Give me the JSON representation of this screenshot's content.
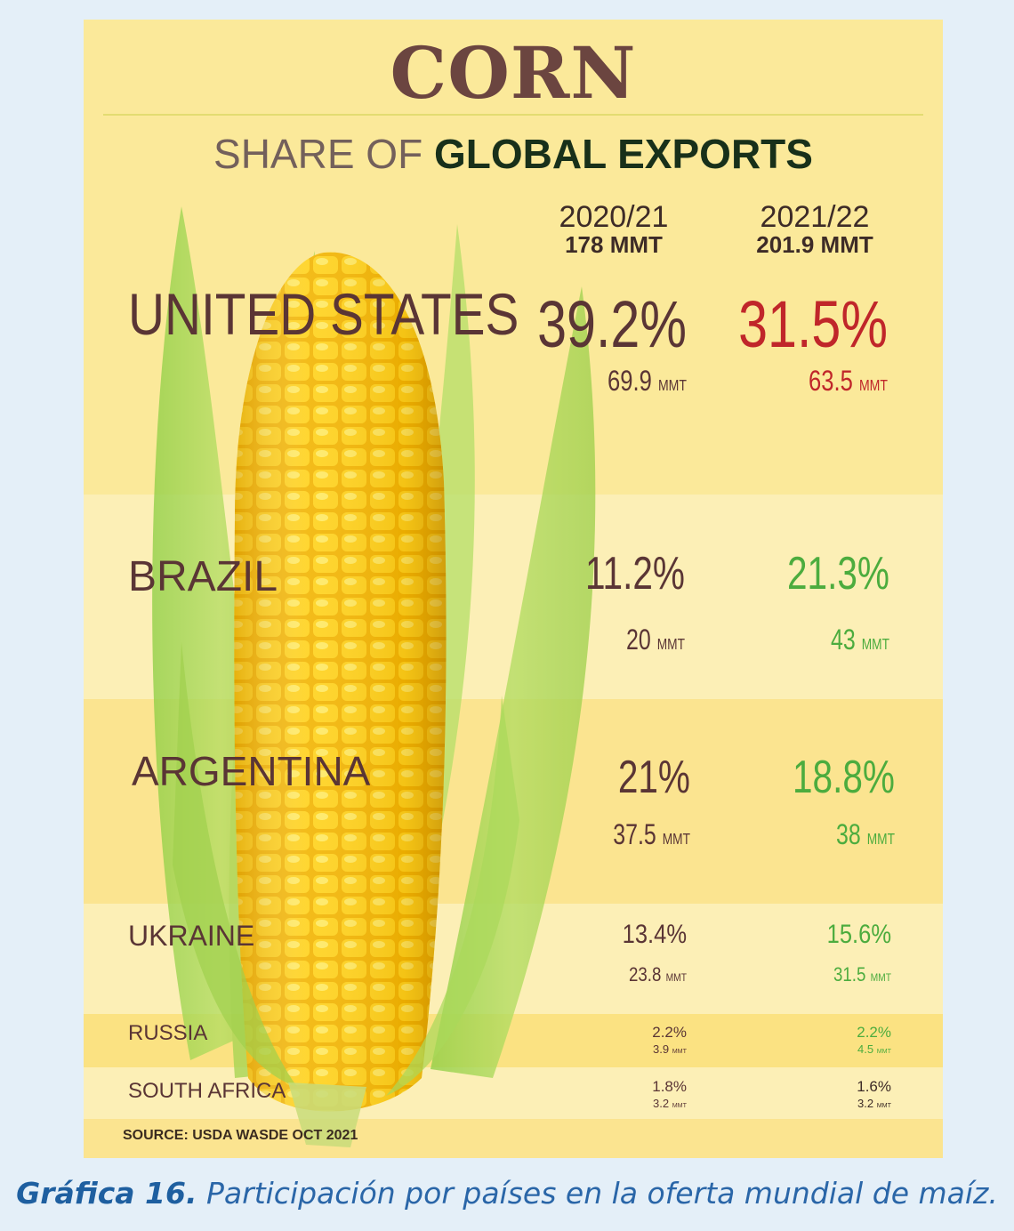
{
  "chart_data": {
    "type": "table",
    "title": "CORN",
    "subtitle_light": "SHARE OF",
    "subtitle_bold": "GLOBAL EXPORTS",
    "columns": [
      {
        "year": "2020/21",
        "total": "178 MMT"
      },
      {
        "year": "2021/22",
        "total": "201.9 MMT"
      }
    ],
    "unit": "MMT",
    "rows": [
      {
        "country": "UNITED STATES",
        "values": [
          {
            "pct": "39.2%",
            "mmt": "69.9",
            "color": "#5a3535"
          },
          {
            "pct": "31.5%",
            "mmt": "63.5",
            "color": "#c0262a"
          }
        ]
      },
      {
        "country": "BRAZIL",
        "values": [
          {
            "pct": "11.2%",
            "mmt": "20",
            "color": "#5a3535"
          },
          {
            "pct": "21.3%",
            "mmt": "43",
            "color": "#4cac3e"
          }
        ]
      },
      {
        "country": "ARGENTINA",
        "values": [
          {
            "pct": "21%",
            "mmt": "37.5",
            "color": "#5a3535"
          },
          {
            "pct": "18.8%",
            "mmt": "38",
            "color": "#4cac3e"
          }
        ]
      },
      {
        "country": "UKRAINE",
        "values": [
          {
            "pct": "13.4%",
            "mmt": "23.8",
            "color": "#5a3535"
          },
          {
            "pct": "15.6%",
            "mmt": "31.5",
            "color": "#4cac3e"
          }
        ]
      },
      {
        "country": "RUSSIA",
        "values": [
          {
            "pct": "2.2%",
            "mmt": "3.9",
            "color": "#5a3535"
          },
          {
            "pct": "2.2%",
            "mmt": "4.5",
            "color": "#4cac3e"
          }
        ]
      },
      {
        "country": "SOUTH AFRICA",
        "values": [
          {
            "pct": "1.8%",
            "mmt": "3.2",
            "color": "#5a3535"
          },
          {
            "pct": "1.6%",
            "mmt": "3.2",
            "color": "#3d2b27"
          }
        ]
      }
    ],
    "source": "SOURCE: USDA WASDE OCT 2021"
  },
  "caption": {
    "label": "Gráfica 16.",
    "text": "Participación por países en la oferta mundial de maíz."
  }
}
